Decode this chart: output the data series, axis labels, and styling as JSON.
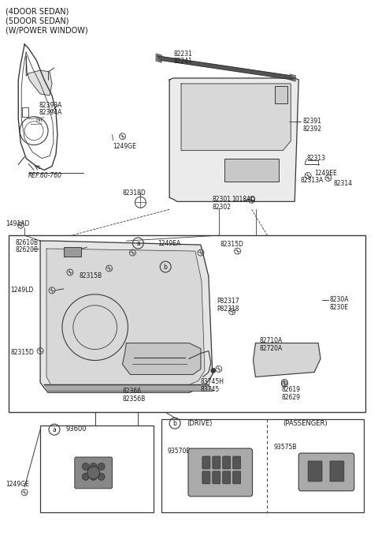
{
  "title_lines": [
    "(4DOOR SEDAN)",
    "(5DOOR SEDAN)",
    "(W/POWER WINDOW)"
  ],
  "bg_color": "#ffffff",
  "lc": "#3a3a3a",
  "tc": "#1a1a1a",
  "figsize": [
    4.8,
    6.79
  ],
  "dpi": 100
}
